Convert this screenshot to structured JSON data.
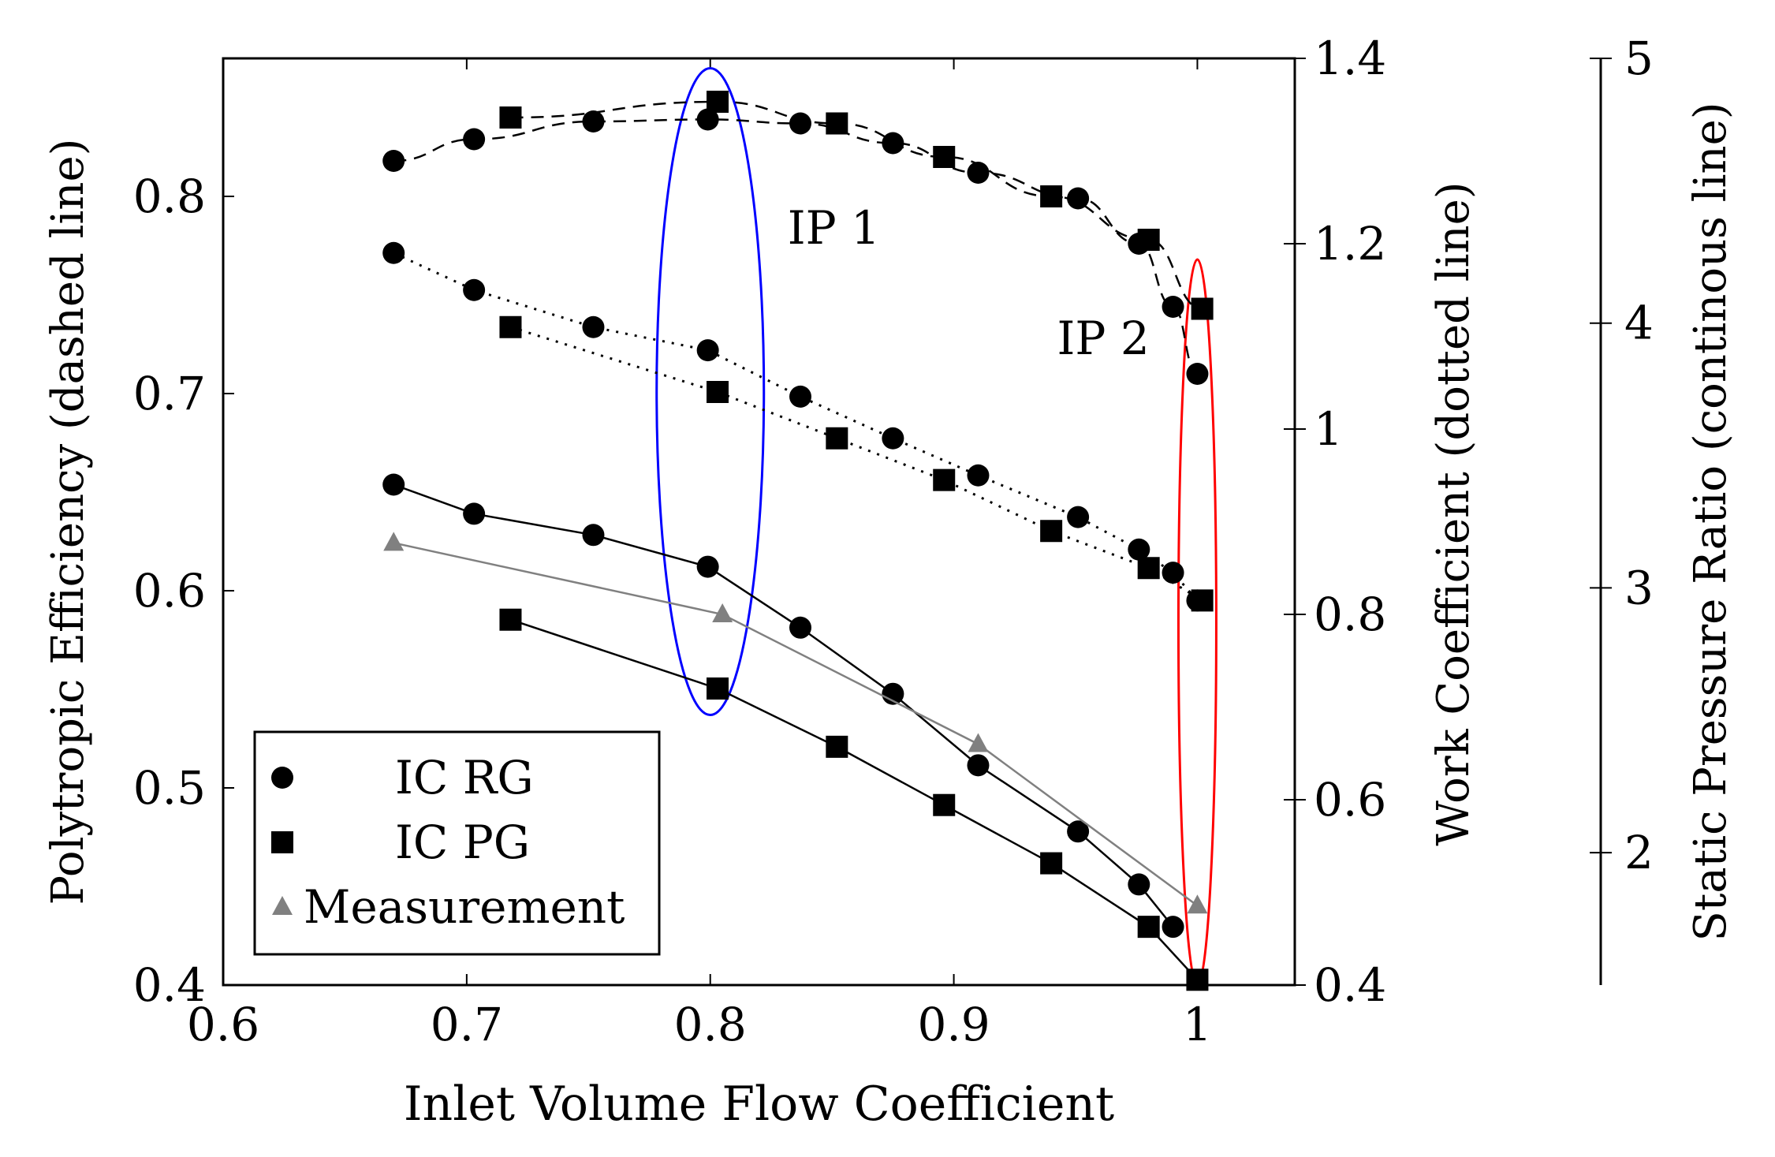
{
  "chart_data": {
    "type": "line",
    "xlabel": "Inlet Volume Flow Coefficient",
    "x_ticks": [
      "0.6",
      "0.7",
      "0.8",
      "0.9",
      "1"
    ],
    "xlim": [
      0.6,
      1.04
    ],
    "axes": {
      "efficiency": {
        "label": "Polytropic Efficiency (dashed line)",
        "ylim": [
          0.4,
          0.87
        ],
        "ticks": [
          "0.4",
          "0.5",
          "0.6",
          "0.7",
          "0.8"
        ]
      },
      "work": {
        "label": "Work Coefficient (dotted line)",
        "ylim": [
          0.4,
          1.4
        ],
        "ticks": [
          "0.4",
          "0.6",
          "0.8",
          "1",
          "1.2",
          "1.4"
        ]
      },
      "pressure_ratio": {
        "label": "Static Pressure Ratio (continous line)",
        "ylim": [
          1.5,
          5
        ],
        "ticks": [
          "2",
          "3",
          "4",
          "5"
        ]
      }
    },
    "legend": {
      "position": "bottom-left",
      "entries": [
        {
          "label": "IC RG",
          "marker": "circle",
          "color": "#000000"
        },
        {
          "label": "IC PG",
          "marker": "square",
          "color": "#000000"
        },
        {
          "label": "Measurement",
          "marker": "triangle",
          "color": "#808080"
        }
      ]
    },
    "annotations": [
      {
        "text": "IP 1",
        "ellipse_color": "#0000ff",
        "x": 0.8,
        "y_range_eff": [
          0.537,
          0.865
        ]
      },
      {
        "text": "IP 2",
        "ellipse_color": "#ff0000",
        "x": 1.0,
        "y_range_eff": [
          0.4,
          0.768
        ]
      }
    ],
    "series": [
      {
        "group": "IC RG",
        "style": "dashed",
        "axis": "efficiency",
        "marker": "circle",
        "x": [
          0.67,
          0.703,
          0.752,
          0.799,
          0.837,
          0.875,
          0.91,
          0.951,
          0.976,
          0.99,
          1.0
        ],
        "y": [
          0.818,
          0.829,
          0.838,
          0.839,
          0.837,
          0.827,
          0.812,
          0.799,
          0.776,
          0.744,
          0.71
        ]
      },
      {
        "group": "IC PG",
        "style": "dashed",
        "axis": "efficiency",
        "marker": "square",
        "x": [
          0.718,
          0.803,
          0.852,
          0.896,
          0.94,
          0.98,
          1.002
        ],
        "y": [
          0.84,
          0.848,
          0.837,
          0.82,
          0.8,
          0.778,
          0.743
        ]
      },
      {
        "group": "IC RG",
        "style": "dotted",
        "axis": "work",
        "marker": "circle",
        "x": [
          0.67,
          0.703,
          0.752,
          0.799,
          0.837,
          0.875,
          0.91,
          0.951,
          0.976,
          0.99,
          1.0
        ],
        "y": [
          1.19,
          1.15,
          1.11,
          1.085,
          1.035,
          0.99,
          0.95,
          0.905,
          0.87,
          0.845,
          0.815
        ]
      },
      {
        "group": "IC PG",
        "style": "dotted",
        "axis": "work",
        "marker": "square",
        "x": [
          0.718,
          0.803,
          0.852,
          0.896,
          0.94,
          0.98,
          1.002
        ],
        "y": [
          1.11,
          1.04,
          0.99,
          0.945,
          0.89,
          0.85,
          0.815
        ]
      },
      {
        "group": "IC RG",
        "style": "solid",
        "axis": "pressure_ratio",
        "marker": "circle",
        "x": [
          0.67,
          0.703,
          0.752,
          0.799,
          0.837,
          0.875,
          0.91,
          0.951,
          0.976,
          0.99
        ],
        "y": [
          3.39,
          3.28,
          3.2,
          3.08,
          2.85,
          2.6,
          2.33,
          2.08,
          1.88,
          1.72
        ]
      },
      {
        "group": "IC PG",
        "style": "solid",
        "axis": "pressure_ratio",
        "marker": "square",
        "x": [
          0.718,
          0.803,
          0.852,
          0.896,
          0.94,
          0.98,
          1.0
        ],
        "y": [
          2.88,
          2.62,
          2.4,
          2.18,
          1.96,
          1.72,
          1.52
        ]
      },
      {
        "group": "Measurement",
        "style": "solid",
        "axis": "pressure_ratio",
        "marker": "triangle",
        "color": "#808080",
        "x": [
          0.67,
          0.805,
          0.91,
          1.0
        ],
        "y": [
          3.17,
          2.9,
          2.41,
          1.8
        ]
      }
    ]
  }
}
